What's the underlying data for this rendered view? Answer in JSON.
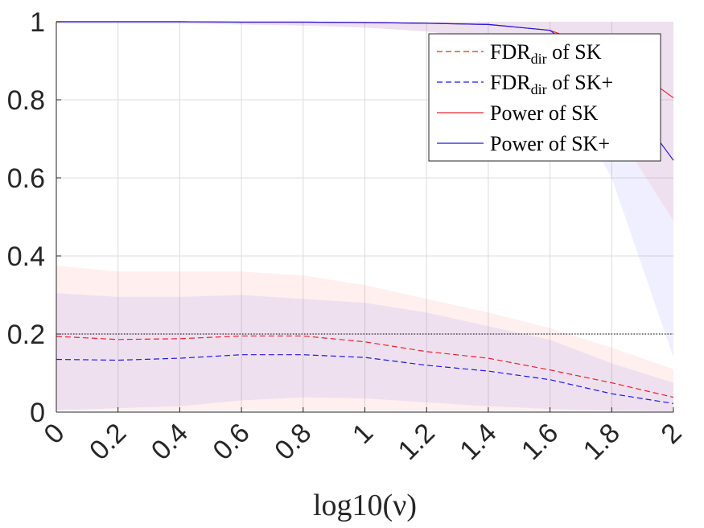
{
  "chart_data": {
    "type": "line",
    "xlabel": "log10(ν)",
    "x": [
      0,
      0.2,
      0.4,
      0.6,
      0.8,
      1.0,
      1.2,
      1.4,
      1.6,
      1.8,
      2.0
    ],
    "xticks": [
      "0",
      "0.2",
      "0.4",
      "0.6",
      "0.8",
      "1",
      "1.2",
      "1.4",
      "1.6",
      "1.8",
      "2"
    ],
    "yticks": [
      "0",
      "0.2",
      "0.4",
      "0.6",
      "0.8",
      "1"
    ],
    "xlim": [
      0,
      2
    ],
    "ylim": [
      0,
      1
    ],
    "grid": true,
    "reference_line": 0.2,
    "legend_position": "top-right",
    "series": [
      {
        "name": "FDR_dir of SK",
        "legend_main": "FDR",
        "legend_sub": "dir",
        "legend_rest": " of SK",
        "color": "#e8242c",
        "style": "dashed",
        "values": [
          0.194,
          0.186,
          0.188,
          0.195,
          0.195,
          0.18,
          0.155,
          0.138,
          0.108,
          0.075,
          0.038
        ],
        "band_lower": [
          0.005,
          0.005,
          0.005,
          0.006,
          0.006,
          0.005,
          0.004,
          0.004,
          0.003,
          0.003,
          0.002
        ],
        "band_upper": [
          0.375,
          0.36,
          0.36,
          0.36,
          0.35,
          0.325,
          0.29,
          0.255,
          0.215,
          0.165,
          0.11
        ]
      },
      {
        "name": "FDR_dir of SK+",
        "legend_main": "FDR",
        "legend_sub": "dir",
        "legend_rest": " of SK+",
        "color": "#1c1ce0",
        "style": "dashed",
        "values": [
          0.135,
          0.133,
          0.138,
          0.147,
          0.147,
          0.14,
          0.12,
          0.105,
          0.083,
          0.047,
          0.022
        ],
        "band_lower": [
          0.005,
          0.01,
          0.015,
          0.03,
          0.038,
          0.035,
          0.025,
          0.015,
          0.008,
          0.003,
          0.001
        ],
        "band_upper": [
          0.305,
          0.295,
          0.295,
          0.3,
          0.29,
          0.28,
          0.255,
          0.22,
          0.185,
          0.125,
          0.075
        ]
      },
      {
        "name": "Power of SK",
        "legend_main": "Power of SK",
        "legend_sub": "",
        "legend_rest": "",
        "color": "#e8242c",
        "style": "solid",
        "values": [
          1.0,
          1.0,
          1.0,
          0.999,
          0.999,
          0.998,
          0.996,
          0.993,
          0.978,
          0.92,
          0.805
        ],
        "band_lower": [
          0.995,
          0.995,
          0.995,
          0.993,
          0.99,
          0.985,
          0.975,
          0.955,
          0.9,
          0.74,
          0.49
        ],
        "band_upper": [
          1.0,
          1.0,
          1.0,
          1.0,
          1.0,
          1.0,
          1.0,
          1.0,
          1.0,
          1.0,
          1.0
        ]
      },
      {
        "name": "Power of SK+",
        "legend_main": "Power of SK+",
        "legend_sub": "",
        "legend_rest": "",
        "color": "#1c1ce0",
        "style": "solid",
        "values": [
          1.0,
          1.0,
          1.0,
          0.999,
          0.999,
          0.998,
          0.996,
          0.993,
          0.978,
          0.86,
          0.645
        ],
        "band_lower": [
          0.995,
          0.995,
          0.995,
          0.993,
          0.99,
          0.985,
          0.975,
          0.955,
          0.89,
          0.6,
          0.14
        ],
        "band_upper": [
          1.0,
          1.0,
          1.0,
          1.0,
          1.0,
          1.0,
          1.0,
          1.0,
          1.0,
          1.0,
          1.0
        ]
      }
    ]
  }
}
